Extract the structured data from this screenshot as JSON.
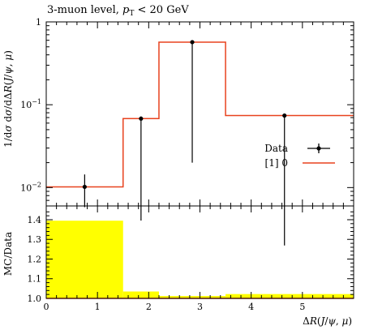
{
  "chart_data": [
    {
      "type": "line",
      "title": "3-muon level, p_T < 20 GeV",
      "title_parts": {
        "prefix": "3-muon level, ",
        "var": "p",
        "sub": "T",
        "suffix": " < 20 GeV"
      },
      "ylabel": "1/dσ dσ/dΔR(J/ψ,μ)",
      "ylabel_parts": {
        "p1": "1/d",
        "sig1": "σ",
        "p2": " d",
        "sig2": "σ",
        "p3": "/dΔ",
        "R": "R",
        "p4": "(",
        "J": "J",
        "p5": "/",
        "psi": "ψ",
        "p6": ", ",
        "mu": "μ",
        "p7": ")"
      },
      "yscale": "log",
      "ylim": [
        0.006,
        1.0
      ],
      "xlim": [
        0,
        6.0
      ],
      "grid": false,
      "legend_position": "right",
      "y_ticks": [
        {
          "value": 0.01,
          "label_base": "10",
          "label_exp": "−2"
        },
        {
          "value": 0.1,
          "label_base": "10",
          "label_exp": "−1"
        },
        {
          "value": 1.0,
          "label_base": "1",
          "label_exp": ""
        }
      ],
      "legend": [
        {
          "name": "Data",
          "color": "#000000"
        },
        {
          "name": "[1] 0",
          "color": "#e8421e"
        }
      ],
      "series": [
        {
          "name": "Data",
          "color": "#000000",
          "x": [
            0.75,
            1.85,
            2.85,
            4.65
          ],
          "y": [
            0.0102,
            0.068,
            0.57,
            0.074
          ],
          "yerr_low": [
            0.0058,
            0.004,
            0.02,
            0.002
          ],
          "yerr_high": [
            0.0144,
            0.072,
            0.59,
            0.076
          ]
        },
        {
          "name": "[1] 0",
          "color": "#e8421e",
          "type": "step",
          "bin_edges": [
            0,
            1.5,
            2.2,
            3.5,
            6.0
          ],
          "values": [
            0.0102,
            0.068,
            0.57,
            0.074
          ]
        }
      ]
    },
    {
      "type": "area",
      "ylabel": "MC/Data",
      "xlabel": "ΔR(J/ψ,μ)",
      "xlabel_parts": {
        "p1": "Δ",
        "R": "R",
        "p2": "(",
        "J": "J",
        "p3": "/",
        "psi": "ψ",
        "p4": ", ",
        "mu": "μ",
        "p5": ")"
      },
      "ylim": [
        1.0,
        1.47
      ],
      "xlim": [
        0,
        6.0
      ],
      "band_color": "#ffff00",
      "x_ticks": [
        0,
        1,
        2,
        3,
        4,
        5
      ],
      "x_tick_labels": [
        "0",
        "1",
        "2",
        "3",
        "4",
        "5"
      ],
      "y_ticks": [
        1.0,
        1.1,
        1.2,
        1.3,
        1.4
      ],
      "y_tick_labels": [
        "1.0",
        "1.1",
        "1.2",
        "1.3",
        "1.4"
      ],
      "band": {
        "bin_edges": [
          0,
          1.5,
          2.2,
          3.5,
          6.0
        ],
        "upper": [
          1.395,
          1.035,
          1.012,
          1.022
        ],
        "lower": [
          1.0,
          1.0,
          1.0,
          1.0
        ]
      },
      "ratio_line": {
        "x": [
          0,
          6.0
        ],
        "y": [
          1.0,
          1.0
        ],
        "color": "#e8421e"
      }
    }
  ]
}
